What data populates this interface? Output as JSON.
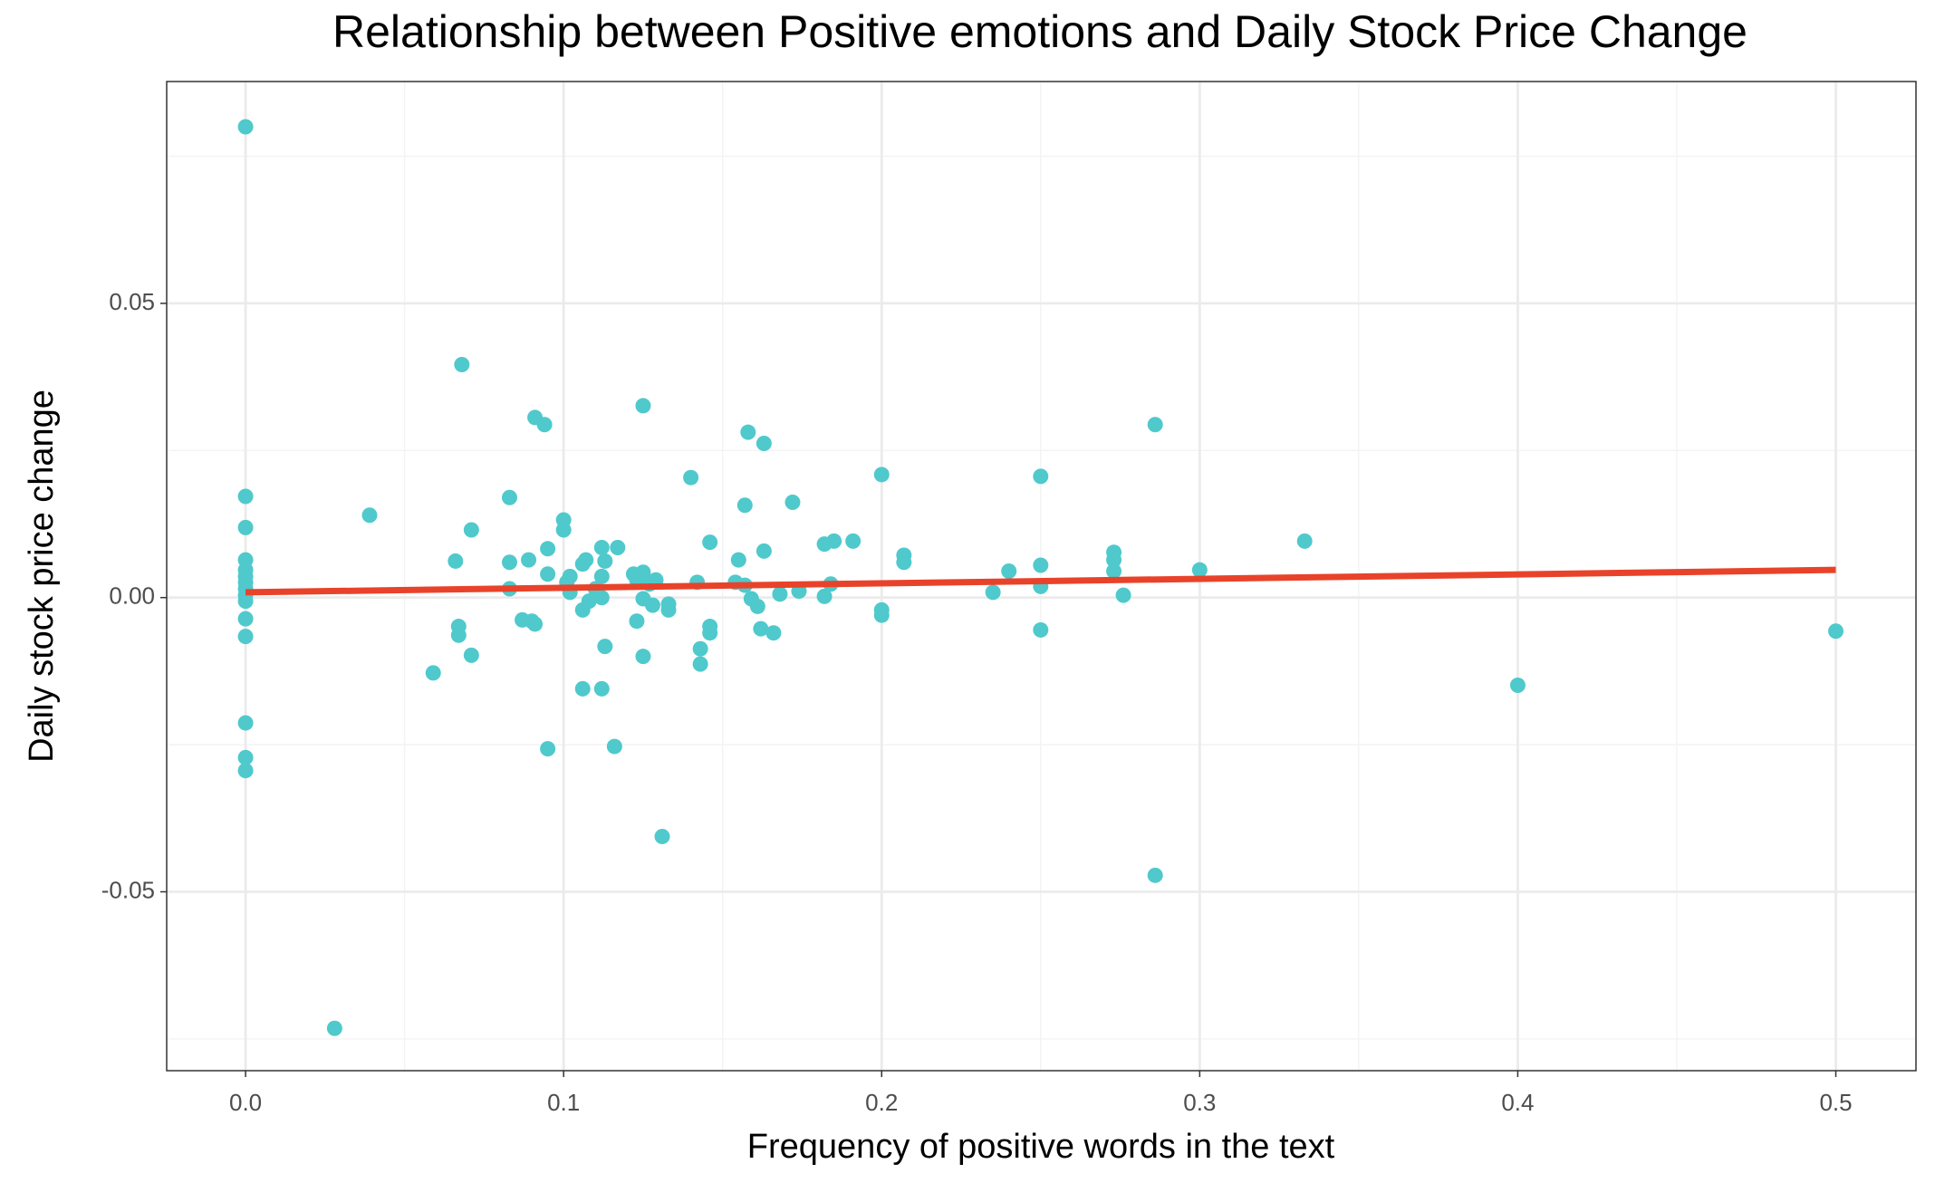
{
  "chart_data": {
    "type": "scatter",
    "title": "Relationship between Positive emotions and Daily Stock Price Change",
    "x_label": "Frequency of positive words in the text",
    "y_label": "Daily stock price change",
    "color": "#4fc9cc",
    "x": [
      0,
      0,
      0,
      0,
      0,
      0,
      0,
      0,
      0,
      0,
      0,
      0,
      0,
      0,
      0,
      0.028,
      0.039,
      0.059,
      0.066,
      0.067,
      0.067,
      0.068,
      0.071,
      0.071,
      0.083,
      0.083,
      0.083,
      0.087,
      0.089,
      0.09,
      0.091,
      0.091,
      0.094,
      0.095,
      0.095,
      0.095,
      0.1,
      0.1,
      0.101,
      0.102,
      0.102,
      0.106,
      0.106,
      0.106,
      0.107,
      0.108,
      0.11,
      0.112,
      0.112,
      0.112,
      0.112,
      0.113,
      0.113,
      0.116,
      0.117,
      0.122,
      0.123,
      0.123,
      0.125,
      0.125,
      0.125,
      0.125,
      0.127,
      0.128,
      0.129,
      0.131,
      0.133,
      0.133,
      0.14,
      0.142,
      0.143,
      0.143,
      0.146,
      0.146,
      0.146,
      0.154,
      0.155,
      0.157,
      0.158,
      0.157,
      0.159,
      0.161,
      0.163,
      0.162,
      0.163,
      0.166,
      0.168,
      0.172,
      0.174,
      0.182,
      0.182,
      0.184,
      0.185,
      0.191,
      0.2,
      0.2,
      0.2,
      0.207,
      0.207,
      0.235,
      0.24,
      0.25,
      0.25,
      0.25,
      0.25,
      0.273,
      0.273,
      0.273,
      0.276,
      0.286,
      0.286,
      0.3,
      0.333,
      0.4,
      0.5
    ],
    "y": [
      0.08,
      0.0172,
      0.0119,
      0.0064,
      0.0047,
      0.0036,
      0.0026,
      0.0015,
      0.0004,
      -0.0006,
      -0.0036,
      -0.0066,
      -0.0213,
      -0.0272,
      -0.0294,
      -0.0732,
      0.014,
      -0.0128,
      0.0062,
      -0.0049,
      -0.0064,
      0.0396,
      0.0115,
      -0.0098,
      0.017,
      0.006,
      0.0015,
      -0.0038,
      0.0064,
      -0.004,
      -0.0045,
      0.0306,
      0.0294,
      -0.0257,
      0.0083,
      0.004,
      0.0132,
      0.0115,
      0.0026,
      0.0036,
      0.0009,
      -0.0021,
      -0.0155,
      0.0057,
      0.0064,
      -0.0006,
      0.0015,
      0.0085,
      0.0036,
      -0.0155,
      0,
      0.0062,
      -0.0083,
      -0.0253,
      0.0085,
      0.004,
      0.003,
      -0.004,
      0.0326,
      -0.01,
      0.0043,
      -0.0002,
      0.0023,
      -0.0013,
      0.003,
      -0.0406,
      -0.0011,
      -0.0021,
      0.0204,
      0.0026,
      -0.0087,
      -0.0113,
      0.0094,
      -0.0049,
      -0.006,
      0.0026,
      0.0064,
      0.0157,
      0.0281,
      0.0021,
      -0.0002,
      -0.0015,
      0.0262,
      -0.0053,
      0.0079,
      -0.006,
      0.0006,
      0.0162,
      0.0011,
      0.0091,
      0.0002,
      0.0023,
      0.0096,
      0.0096,
      0.0209,
      -0.0021,
      -0.003,
      0.0072,
      0.006,
      0.0009,
      0.0045,
      0.0206,
      0.0055,
      0.0019,
      -0.0055,
      0.0077,
      0.0064,
      0.0045,
      0.0004,
      0.0294,
      -0.0472,
      0.0047,
      0.0096,
      -0.0149,
      -0.0057
    ],
    "trend_line": {
      "x": [
        0,
        0.5
      ],
      "y": [
        0.0009,
        0.0047
      ],
      "color": "#e8432a"
    },
    "xlim": [
      -0.0248,
      0.5252
    ],
    "ylim": [
      -0.0804,
      0.0877
    ],
    "xticks": [
      {
        "value": 0,
        "label": "0.0"
      },
      0.1,
      0.2,
      0.3,
      0.4,
      0.5
    ],
    "yticks": [
      -0.05,
      {
        "value": 0,
        "label": "0.00"
      },
      0.05
    ],
    "x_minor_grid": [
      0.05,
      0.15,
      0.25,
      0.35,
      0.45
    ],
    "y_minor_grid": [
      -0.075,
      -0.025,
      0.025,
      0.075
    ],
    "grid": true
  }
}
